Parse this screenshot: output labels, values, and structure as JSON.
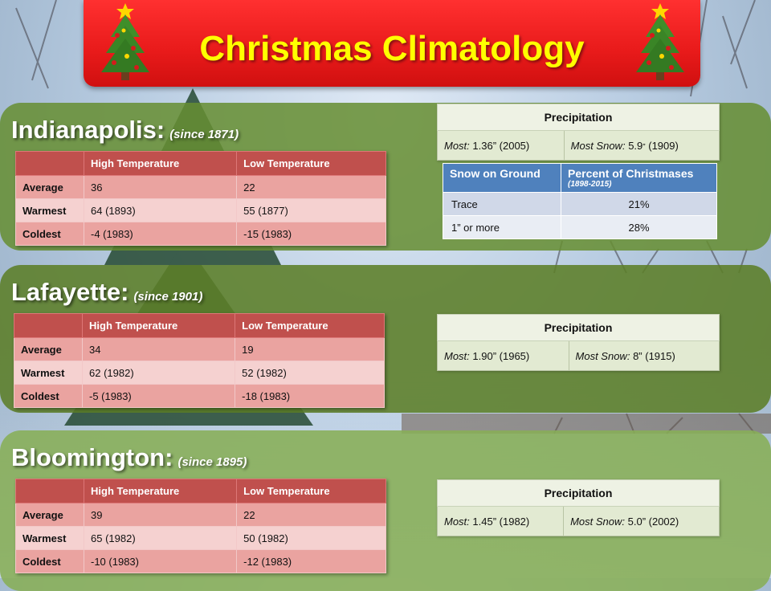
{
  "title": "Christmas Climatology",
  "temp_headers": {
    "high": "High Temperature",
    "low": "Low Temperature"
  },
  "row_labels": {
    "average": "Average",
    "warmest": "Warmest",
    "coldest": "Coldest"
  },
  "precip_header": "Precipitation",
  "precip_labels": {
    "most": "Most:",
    "most_snow": "Most Snow:"
  },
  "cities": {
    "indianapolis": {
      "name": "Indianapolis:",
      "since": "(since 1871)",
      "average": {
        "high": "36",
        "low": "22"
      },
      "warmest": {
        "high": "64 (1893)",
        "low": "55 (1877)"
      },
      "coldest": {
        "high": "-4 (1983)",
        "low": "-15 (1983)"
      },
      "precip_most": "1.36” (2005)",
      "snow_most_value": "5.9",
      "snow_most_unit": "”",
      "snow_most_year": "(1909)"
    },
    "lafayette": {
      "name": "Lafayette:",
      "since": "(since 1901)",
      "average": {
        "high": "34",
        "low": "19"
      },
      "warmest": {
        "high": "62 (1982)",
        "low": "52 (1982)"
      },
      "coldest": {
        "high": "-5 (1983)",
        "low": "-18 (1983)"
      },
      "precip_most": "1.90” (1965)",
      "snow_most": "8” (1915)"
    },
    "bloomington": {
      "name": "Bloomington:",
      "since": "(since 1895)",
      "average": {
        "high": "39",
        "low": "22"
      },
      "warmest": {
        "high": "65 (1982)",
        "low": "50 (1982)"
      },
      "coldest": {
        "high": "-10 (1983)",
        "low": "-12 (1983)"
      },
      "precip_most": "1.45” (1982)",
      "snow_most": "5.0” (2002)"
    }
  },
  "snow_on_ground": {
    "header_left": "Snow on Ground",
    "header_right": "Percent of Christmases",
    "header_sub": "(1898-2015)",
    "rows": [
      {
        "label": "Trace",
        "value": "21%"
      },
      {
        "label": "1” or more",
        "value": "28%"
      }
    ]
  },
  "colors": {
    "banner": "#e81a1a",
    "title_text": "#ffff00",
    "temp_header": "#c0504d",
    "snow_header": "#4f81bd",
    "panel_green": "#678e32"
  }
}
